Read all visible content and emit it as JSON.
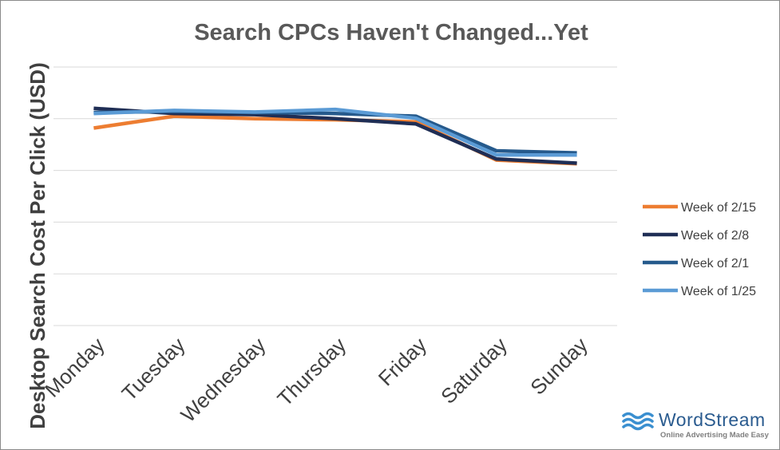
{
  "chart_data": {
    "type": "line",
    "title": "Search CPCs Haven't Changed...Yet",
    "ylabel": "Desktop Search Cost Per Click (USD)",
    "xlabel": "",
    "categories": [
      "Monday",
      "Tuesday",
      "Wednesday",
      "Thursday",
      "Friday",
      "Saturday",
      "Sunday"
    ],
    "ylim": [
      0,
      5
    ],
    "y_tick_labels_shown": false,
    "grid": true,
    "legend_position": "right",
    "series": [
      {
        "name": "Week of 2/15",
        "color": "#ed7d31",
        "values": [
          3.82,
          4.05,
          4.0,
          3.98,
          3.94,
          3.2,
          3.13
        ]
      },
      {
        "name": "Week of 2/8",
        "color": "#1f2e55",
        "values": [
          4.2,
          4.1,
          4.08,
          4.0,
          3.9,
          3.22,
          3.14
        ]
      },
      {
        "name": "Week of 2/1",
        "color": "#265a8c",
        "values": [
          4.12,
          4.14,
          4.12,
          4.1,
          4.05,
          3.38,
          3.34
        ]
      },
      {
        "name": "Week of 1/25",
        "color": "#5b9bd5",
        "values": [
          4.1,
          4.16,
          4.13,
          4.18,
          4.01,
          3.3,
          3.3
        ]
      }
    ]
  },
  "branding": {
    "name": "WordStream",
    "tagline": "Online Advertising Made Easy",
    "logo_icon": "wave-icon"
  }
}
